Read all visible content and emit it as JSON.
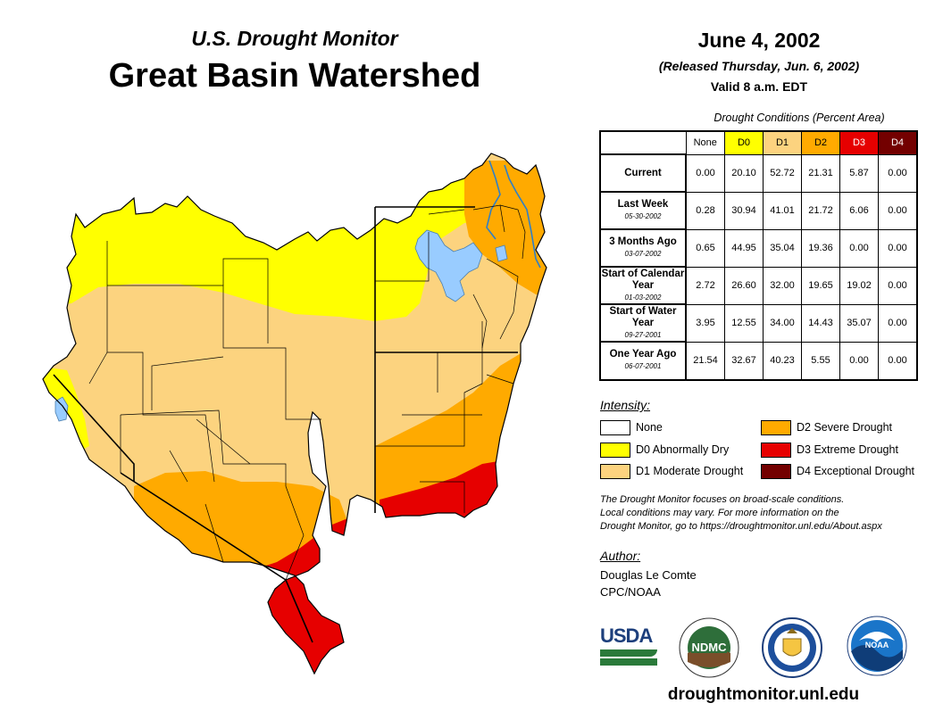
{
  "header": {
    "subtitle": "U.S. Drought Monitor",
    "title": "Great Basin Watershed",
    "date": "June 4, 2002",
    "released": "(Released Thursday, Jun. 6, 2002)",
    "valid": "Valid 8 a.m. EDT"
  },
  "table": {
    "caption": "Drought Conditions (Percent Area)",
    "columns": [
      "None",
      "D0",
      "D1",
      "D2",
      "D3",
      "D4"
    ],
    "column_colors": [
      "#ffffff",
      "#ffff00",
      "#fcd37f",
      "#ffaa00",
      "#e60000",
      "#730000"
    ],
    "column_text_colors": [
      "#000000",
      "#000000",
      "#000000",
      "#000000",
      "#ffffff",
      "#ffffff"
    ],
    "rows": [
      {
        "label": "Current",
        "date": "",
        "values": [
          "0.00",
          "20.10",
          "52.72",
          "21.31",
          "5.87",
          "0.00"
        ]
      },
      {
        "label": "Last Week",
        "date": "05-30-2002",
        "values": [
          "0.28",
          "30.94",
          "41.01",
          "21.72",
          "6.06",
          "0.00"
        ]
      },
      {
        "label": "3 Months Ago",
        "date": "03-07-2002",
        "values": [
          "0.65",
          "44.95",
          "35.04",
          "19.36",
          "0.00",
          "0.00"
        ]
      },
      {
        "label": "Start of Calendar Year",
        "date": "01-03-2002",
        "values": [
          "2.72",
          "26.60",
          "32.00",
          "19.65",
          "19.02",
          "0.00"
        ]
      },
      {
        "label": "Start of Water Year",
        "date": "09-27-2001",
        "values": [
          "3.95",
          "12.55",
          "34.00",
          "14.43",
          "35.07",
          "0.00"
        ]
      },
      {
        "label": "One Year Ago",
        "date": "06-07-2001",
        "values": [
          "21.54",
          "32.67",
          "40.23",
          "5.55",
          "0.00",
          "0.00"
        ]
      }
    ]
  },
  "legend": {
    "heading": "Intensity:",
    "items": [
      {
        "label": "None",
        "color": "#ffffff"
      },
      {
        "label": "D0 Abnormally Dry",
        "color": "#ffff00"
      },
      {
        "label": "D1 Moderate Drought",
        "color": "#fcd37f"
      },
      {
        "label": "D2 Severe Drought",
        "color": "#ffaa00"
      },
      {
        "label": "D3 Extreme Drought",
        "color": "#e60000"
      },
      {
        "label": "D4 Exceptional Drought",
        "color": "#730000"
      }
    ]
  },
  "note": {
    "line1": "The Drought Monitor focuses on broad-scale conditions.",
    "line2": "Local conditions may vary. For more information on the",
    "line3": "Drought Monitor, go to https://droughtmonitor.unl.edu/About.aspx"
  },
  "author": {
    "heading": "Author:",
    "name": "Douglas Le Comte",
    "org": "CPC/NOAA"
  },
  "logos": {
    "usda": "USDA",
    "ndmc": "NDMC",
    "noaa": "NOAA"
  },
  "website": "droughtmonitor.unl.edu",
  "map": {
    "water_color": "#99ccff",
    "boundary_color": "#000000"
  }
}
